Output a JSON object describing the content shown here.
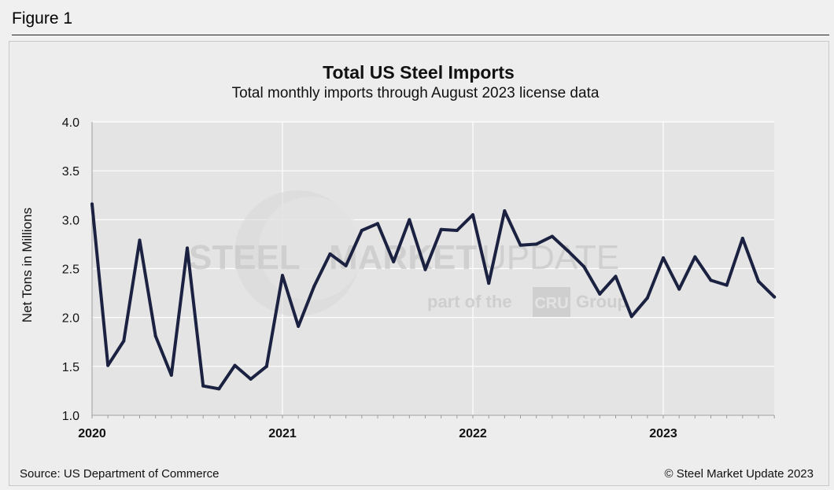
{
  "figure_label": "Figure 1",
  "source_text": "Source: US Department of Commerce",
  "copyright_text": "© Steel Market Update 2023",
  "watermark": {
    "word1": "STEEL",
    "word2": "MARKET",
    "word3": "UPDATE",
    "tagline_prefix": "part of the",
    "tagline_logo": "CRU",
    "tagline_suffix": "Group"
  },
  "colors": {
    "line": "#1b2140",
    "plot_bg": "#e4e4e4",
    "grid": "#ffffff"
  },
  "chart_data": {
    "type": "line",
    "title": "Total US Steel Imports",
    "subtitle": "Total monthly  imports through  August 2023 license data",
    "ylabel": "Net Tons in Millions",
    "xlabel": "",
    "ylim": [
      1.0,
      4.0
    ],
    "yticks": [
      "1.0",
      "1.5",
      "2.0",
      "2.5",
      "3.0",
      "3.5",
      "4.0"
    ],
    "xticks": [
      "2020",
      "2021",
      "2022",
      "2023"
    ],
    "grid": true,
    "series": [
      {
        "name": "Total US Steel Imports",
        "start": "2020-01",
        "values": [
          3.16,
          1.51,
          1.76,
          2.79,
          1.81,
          1.41,
          2.71,
          1.3,
          1.27,
          1.51,
          1.37,
          1.5,
          2.43,
          1.91,
          2.32,
          2.65,
          2.53,
          2.89,
          2.96,
          2.57,
          3.0,
          2.49,
          2.9,
          2.89,
          3.05,
          2.35,
          3.09,
          2.74,
          2.75,
          2.83,
          2.68,
          2.52,
          2.24,
          2.42,
          2.01,
          2.2,
          2.61,
          2.29,
          2.62,
          2.38,
          2.33,
          2.81,
          2.37,
          2.21
        ]
      }
    ]
  }
}
